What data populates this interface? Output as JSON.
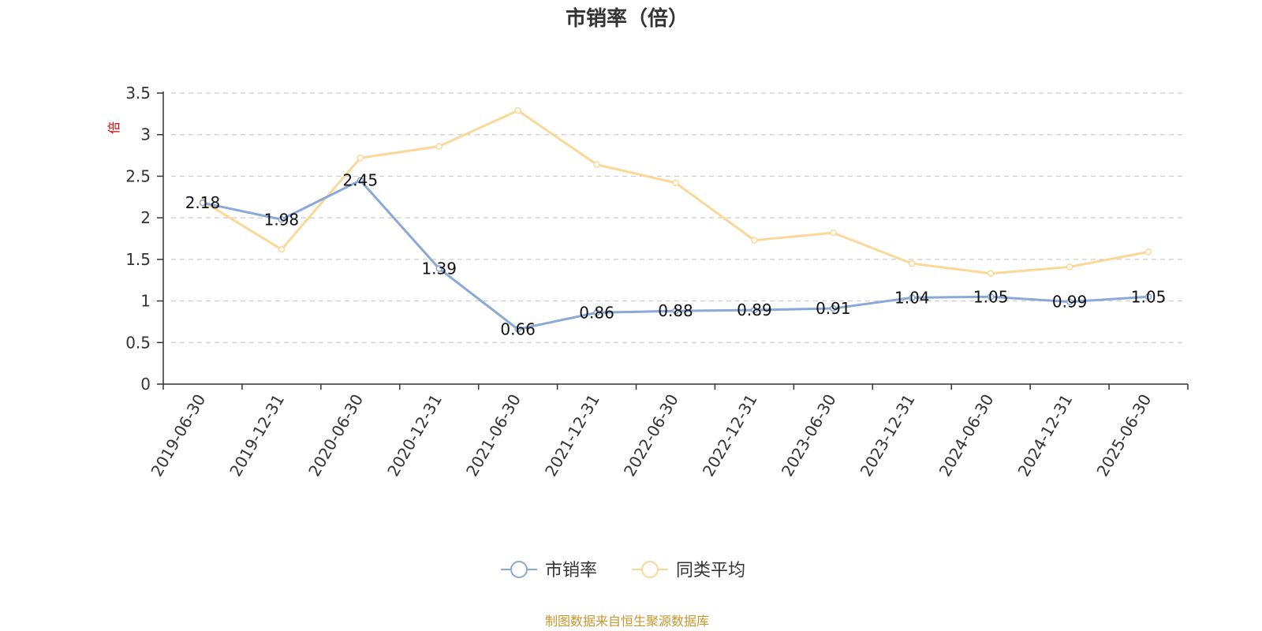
{
  "chart_data": {
    "type": "line",
    "title": "市销率（倍）",
    "ylabel": "倍",
    "xlabel": "",
    "ylim": [
      0,
      3.5
    ],
    "yticks": [
      "0",
      "0.5",
      "1",
      "1.5",
      "2",
      "2.5",
      "3",
      "3.5"
    ],
    "grid": true,
    "categories": [
      "2019-06-30",
      "2019-12-31",
      "2020-06-30",
      "2020-12-31",
      "2021-06-30",
      "2021-12-31",
      "2022-06-30",
      "2022-12-31",
      "2023-06-30",
      "2023-12-31",
      "2024-06-30",
      "2024-12-31",
      "2025-06-30"
    ],
    "series": [
      {
        "name": "市销率",
        "color": "#8aa8d8",
        "values": [
          2.18,
          1.98,
          2.45,
          1.39,
          0.66,
          0.86,
          0.88,
          0.89,
          0.91,
          1.04,
          1.05,
          0.99,
          1.05
        ],
        "labels": [
          "2.18",
          "1.98",
          "2.45",
          "1.39",
          "0.66",
          "0.86",
          "0.88",
          "0.89",
          "0.91",
          "1.04",
          "1.05",
          "0.99",
          "1.05"
        ]
      },
      {
        "name": "同类平均",
        "color": "#fad897",
        "values": [
          2.2,
          1.62,
          2.72,
          2.86,
          3.29,
          2.64,
          2.42,
          1.73,
          1.82,
          1.45,
          1.33,
          1.41,
          1.59
        ]
      }
    ],
    "legend_position": "bottom-center",
    "source": "制图数据来自恒生聚源数据库"
  }
}
